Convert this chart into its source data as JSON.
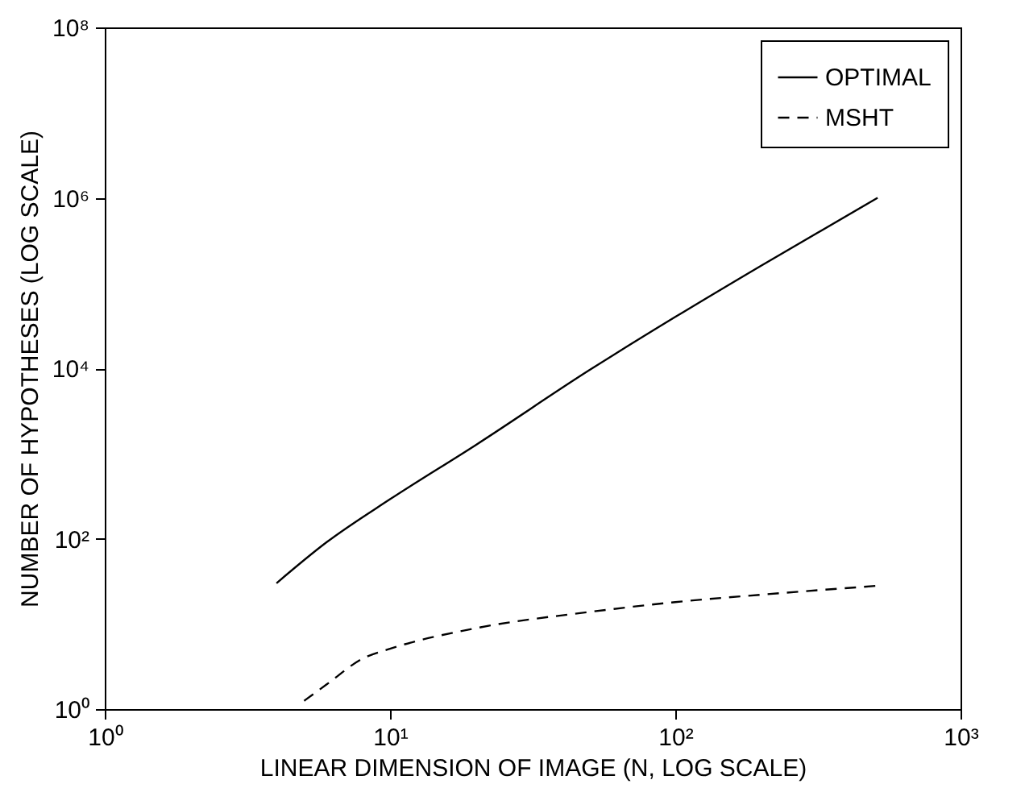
{
  "chart_data": {
    "type": "line",
    "xlabel": "LINEAR DIMENSION OF  IMAGE (N, LOG SCALE)",
    "ylabel": "NUMBER OF HYPOTHESES (LOG SCALE)",
    "log": "xy",
    "xlim": [
      1,
      1000
    ],
    "ylim": [
      1,
      100000000
    ],
    "xticks": [
      {
        "value": 1,
        "label": "10⁰"
      },
      {
        "value": 10,
        "label": "10¹"
      },
      {
        "value": 100,
        "label": "10²"
      },
      {
        "value": 1000,
        "label": "10³"
      }
    ],
    "yticks": [
      {
        "value": 1,
        "label": "10⁰"
      },
      {
        "value": 100,
        "label": "10²"
      },
      {
        "value": 10000,
        "label": "10⁴"
      },
      {
        "value": 1000000,
        "label": "10⁶"
      },
      {
        "value": 100000000,
        "label": "10⁸"
      }
    ],
    "legend": "top right",
    "grid": false,
    "marker": "none",
    "series": [
      {
        "name": "OPTIMAL",
        "color": "#000000",
        "line_style": "solid",
        "x": [
          4,
          6,
          10,
          20,
          50,
          100,
          200,
          512
        ],
        "values": [
          30,
          91,
          290,
          1260,
          9500,
          40000,
          160000,
          1000000
        ]
      },
      {
        "name": "MSHT",
        "color": "#000000",
        "line_style": "dashed",
        "x": [
          5,
          6,
          8,
          10,
          20,
          50,
          100,
          200,
          512
        ],
        "values": [
          1.25,
          1.95,
          3.9,
          5.1,
          8.9,
          13.8,
          18,
          22,
          28
        ]
      }
    ]
  }
}
